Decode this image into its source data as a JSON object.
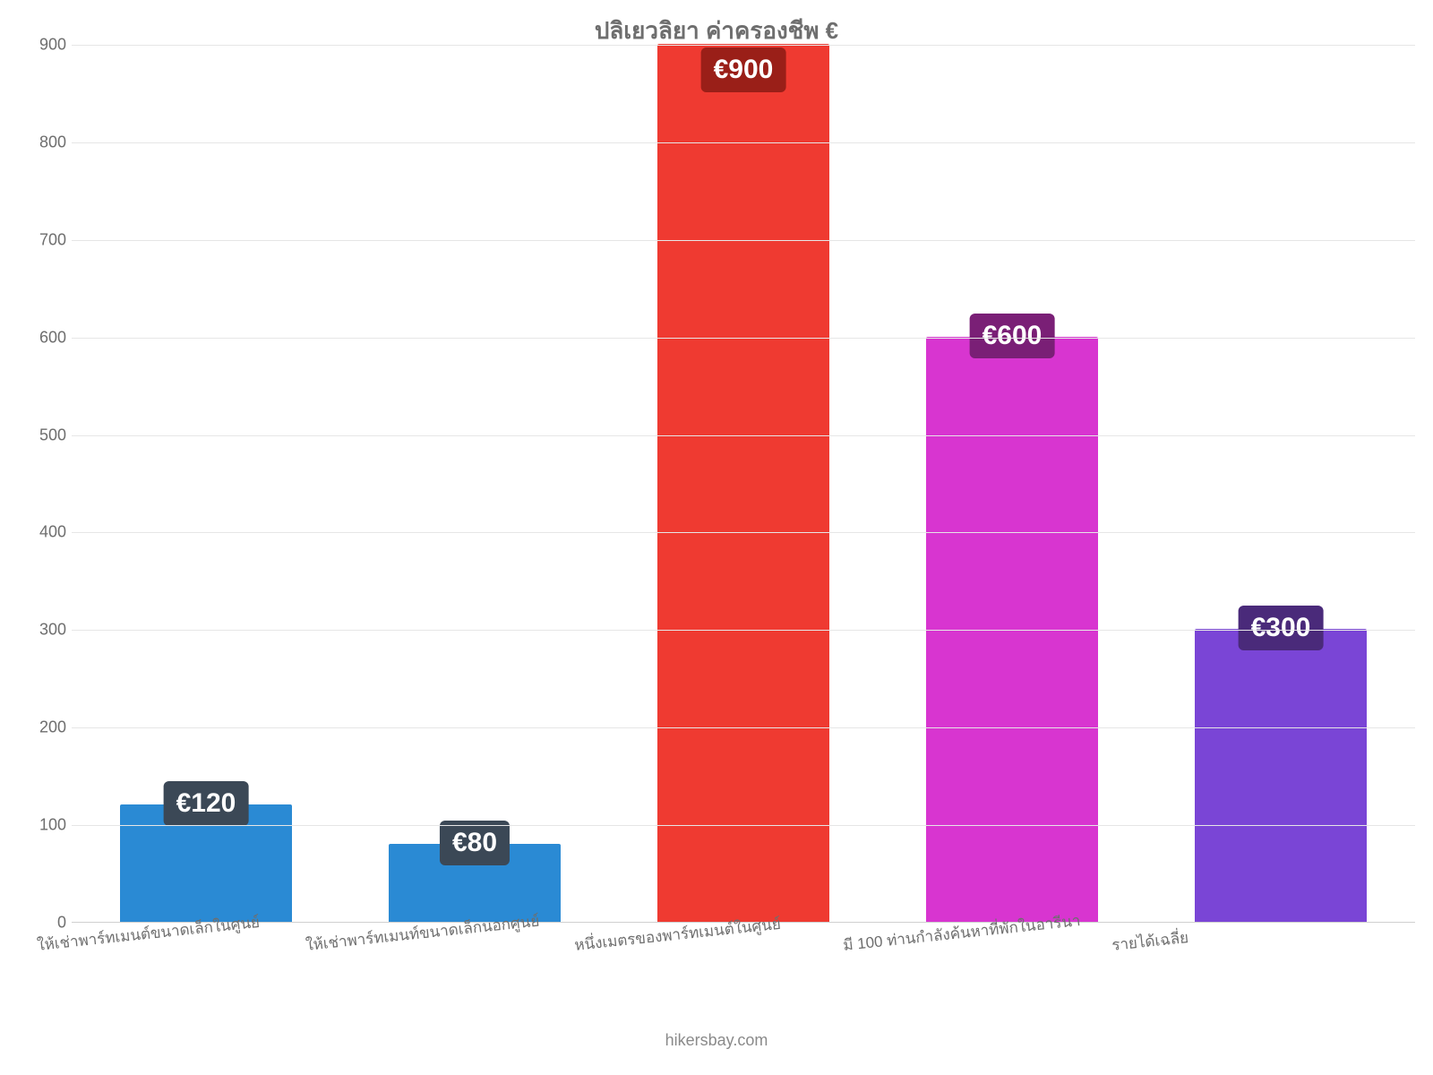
{
  "chart": {
    "type": "bar",
    "title": "ปลิเยวลิยา ค่าครองชีพ €",
    "title_fontsize": 26,
    "title_color": "#6e6e6e",
    "background_color": "#ffffff",
    "grid_color": "#e6e6e6",
    "axis_color": "#d0d0d0",
    "tick_color": "#6e6e6e",
    "tick_fontsize": 18,
    "ylim": [
      0,
      900
    ],
    "ytick_step": 100,
    "yticks": [
      0,
      100,
      200,
      300,
      400,
      500,
      600,
      700,
      800,
      900
    ],
    "bar_width": 0.64,
    "categories": [
      "ให้เช่าพาร์ทเมนต์ขนาดเล็กในศูนย์",
      "ให้เช่าพาร์ทเมนท์ขนาดเล็กนอกศูนย์",
      "หนึ่งเมตรของพาร์ทเมนต์ในศูนย์",
      "มี 100 ท่านกำลังค้นหาที่พักในอารีนา",
      "รายได้เฉลี่ย"
    ],
    "values": [
      120,
      80,
      900,
      600,
      300
    ],
    "value_labels": [
      "€120",
      "€80",
      "€900",
      "€600",
      "€300"
    ],
    "bar_colors": [
      "#2a8ad4",
      "#2a8ad4",
      "#ef3a31",
      "#d835d0",
      "#7a45d6"
    ],
    "badge_bg_colors": [
      "#3b4856",
      "#3b4856",
      "#9a1f18",
      "#7a1f76",
      "#4a2a7a"
    ],
    "badge_text_color": "#ffffff",
    "badge_fontsize": 30,
    "xlabel_fontsize": 17,
    "xlabel_color": "#6e6e6e",
    "xlabel_rotate_deg": -6,
    "footer": "hikersbay.com",
    "footer_color": "#8a8a8a",
    "footer_fontsize": 18
  }
}
